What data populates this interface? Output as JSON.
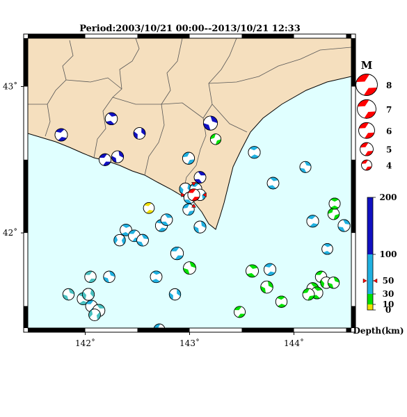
{
  "title": "Period:2003/10/21 00:00--2013/10/21 12:33",
  "axes": {
    "x_ticks": [
      {
        "value": 142,
        "label": "142˚"
      },
      {
        "value": 143,
        "label": "143˚"
      },
      {
        "value": 144,
        "label": "144˚"
      }
    ],
    "y_ticks": [
      {
        "value": 43,
        "label": "43˚"
      },
      {
        "value": 42,
        "label": "42˚"
      }
    ],
    "lon_range": [
      141.45,
      144.55
    ],
    "lat_range": [
      41.35,
      43.33
    ]
  },
  "colors": {
    "land": "#f5dfbe",
    "sea": "#e0ffff",
    "frame": "#000000",
    "legend_red": "#ff0000"
  },
  "legend": {
    "magnitude_header": "M",
    "magnitudes": [
      {
        "label": "8",
        "m": 8
      },
      {
        "label": "7",
        "m": 7
      },
      {
        "label": "6",
        "m": 6
      },
      {
        "label": "5",
        "m": 5
      },
      {
        "label": "4",
        "m": 4
      }
    ],
    "depth_title": "Depth(km)",
    "depth_ticks": [
      {
        "value": 200,
        "label": "200"
      },
      {
        "value": 100,
        "label": "100"
      },
      {
        "value": 50,
        "label": "50"
      },
      {
        "value": 30,
        "label": "30"
      },
      {
        "value": 10,
        "label": "10"
      },
      {
        "value": 0,
        "label": "0"
      }
    ],
    "depth_bands": [
      {
        "from": 0,
        "to": 10,
        "color": "#f0e000"
      },
      {
        "from": 10,
        "to": 30,
        "color": "#00e000"
      },
      {
        "from": 30,
        "to": 100,
        "color": "#20b0e0"
      },
      {
        "from": 100,
        "to": 200,
        "color": "#1010c0"
      }
    ],
    "marker_depth": 50
  },
  "chart_data": {
    "type": "focal-mechanism map",
    "x_unit": "longitude (deg E)",
    "y_unit": "latitude (deg N)",
    "events": [
      {
        "lon": 141.77,
        "lat": 42.67,
        "mag": 5.0,
        "color": "#1010c0",
        "rot": 30
      },
      {
        "lon": 142.25,
        "lat": 42.78,
        "mag": 4.9,
        "color": "#1010c0",
        "rot": 60
      },
      {
        "lon": 142.52,
        "lat": 42.68,
        "mag": 4.7,
        "color": "#1010c0",
        "rot": 110
      },
      {
        "lon": 142.19,
        "lat": 42.5,
        "mag": 4.8,
        "color": "#1010c0",
        "rot": 20
      },
      {
        "lon": 142.31,
        "lat": 42.52,
        "mag": 4.8,
        "color": "#1010c0",
        "rot": 100
      },
      {
        "lon": 142.99,
        "lat": 42.51,
        "mag": 4.8,
        "color": "#20b0e0",
        "rot": 10
      },
      {
        "lon": 143.1,
        "lat": 42.38,
        "mag": 4.7,
        "color": "#1010c0",
        "rot": 70
      },
      {
        "lon": 143.2,
        "lat": 42.75,
        "mag": 5.6,
        "color": "#1010c0",
        "rot": 90
      },
      {
        "lon": 143.25,
        "lat": 42.64,
        "mag": 4.3,
        "color": "#00e000",
        "rot": 0
      },
      {
        "lon": 143.62,
        "lat": 42.55,
        "mag": 4.8,
        "color": "#20b0e0",
        "rot": 40
      },
      {
        "lon": 144.11,
        "lat": 42.45,
        "mag": 4.5,
        "color": "#20b0e0",
        "rot": 80
      },
      {
        "lon": 143.8,
        "lat": 42.34,
        "mag": 4.7,
        "color": "#20b0e0",
        "rot": 60
      },
      {
        "lon": 142.96,
        "lat": 42.3,
        "mag": 4.8,
        "color": "#20b0e0",
        "rot": 120
      },
      {
        "lon": 143.06,
        "lat": 42.3,
        "mag": 4.8,
        "color": "#20b0e0",
        "rot": 30
      },
      {
        "lon": 143.1,
        "lat": 42.26,
        "mag": 4.6,
        "color": "#20b0e0",
        "rot": 150
      },
      {
        "lon": 143.0,
        "lat": 42.24,
        "mag": 4.6,
        "color": "#20b0e0",
        "rot": 70
      },
      {
        "lon": 142.99,
        "lat": 42.16,
        "mag": 4.6,
        "color": "#20b0e0",
        "rot": 10
      },
      {
        "lon": 142.61,
        "lat": 42.17,
        "mag": 4.4,
        "color": "#f0e000",
        "rot": 30
      },
      {
        "lon": 143.1,
        "lat": 42.04,
        "mag": 4.8,
        "color": "#20b0e0",
        "rot": 100
      },
      {
        "lon": 142.39,
        "lat": 42.02,
        "mag": 4.7,
        "color": "#20b0e0",
        "rot": 50
      },
      {
        "lon": 142.47,
        "lat": 41.98,
        "mag": 4.7,
        "color": "#20b0e0",
        "rot": 20
      },
      {
        "lon": 142.55,
        "lat": 41.95,
        "mag": 4.7,
        "color": "#20b0e0",
        "rot": 80
      },
      {
        "lon": 142.33,
        "lat": 41.95,
        "mag": 4.6,
        "color": "#20b0e0",
        "rot": 140
      },
      {
        "lon": 142.73,
        "lat": 42.05,
        "mag": 4.8,
        "color": "#20b0e0",
        "rot": 30
      },
      {
        "lon": 142.78,
        "lat": 42.09,
        "mag": 4.7,
        "color": "#20b0e0",
        "rot": 70
      },
      {
        "lon": 142.88,
        "lat": 41.86,
        "mag": 5.1,
        "color": "#20b0e0",
        "rot": 20
      },
      {
        "lon": 143.0,
        "lat": 41.76,
        "mag": 5.0,
        "color": "#00e000",
        "rot": 90
      },
      {
        "lon": 142.68,
        "lat": 41.7,
        "mag": 4.7,
        "color": "#20b0e0",
        "rot": 50
      },
      {
        "lon": 142.86,
        "lat": 41.58,
        "mag": 4.6,
        "color": "#20b0e0",
        "rot": 110
      },
      {
        "lon": 142.71,
        "lat": 41.34,
        "mag": 4.5,
        "color": "#20b0e0",
        "rot": 10
      },
      {
        "lon": 142.05,
        "lat": 41.7,
        "mag": 4.6,
        "color": "#48c0c0",
        "rot": 20
      },
      {
        "lon": 142.23,
        "lat": 41.7,
        "mag": 4.6,
        "color": "#20b0e0",
        "rot": 90
      },
      {
        "lon": 141.84,
        "lat": 41.58,
        "mag": 4.6,
        "color": "#48c0c0",
        "rot": 90
      },
      {
        "lon": 141.98,
        "lat": 41.55,
        "mag": 4.8,
        "color": "#48c0c0",
        "rot": 40
      },
      {
        "lon": 142.03,
        "lat": 41.58,
        "mag": 4.8,
        "color": "#48c0c0",
        "rot": 120
      },
      {
        "lon": 142.06,
        "lat": 41.5,
        "mag": 4.7,
        "color": "#20b0e0",
        "rot": 20
      },
      {
        "lon": 142.13,
        "lat": 41.47,
        "mag": 4.9,
        "color": "#48c0c0",
        "rot": 70
      },
      {
        "lon": 142.09,
        "lat": 41.44,
        "mag": 4.7,
        "color": "#48c0c0",
        "rot": 150
      },
      {
        "lon": 143.48,
        "lat": 41.46,
        "mag": 4.5,
        "color": "#00e000",
        "rot": 20
      },
      {
        "lon": 143.6,
        "lat": 41.74,
        "mag": 5.0,
        "color": "#00e000",
        "rot": 60
      },
      {
        "lon": 143.77,
        "lat": 41.75,
        "mag": 4.8,
        "color": "#20b0e0",
        "rot": 30
      },
      {
        "lon": 143.74,
        "lat": 41.63,
        "mag": 4.9,
        "color": "#00e000",
        "rot": 100
      },
      {
        "lon": 143.88,
        "lat": 41.53,
        "mag": 4.6,
        "color": "#00e000",
        "rot": 40
      },
      {
        "lon": 144.18,
        "lat": 41.62,
        "mag": 4.7,
        "color": "#00e000",
        "rot": 70
      },
      {
        "lon": 144.26,
        "lat": 41.7,
        "mag": 4.6,
        "color": "#00e000",
        "rot": 20
      },
      {
        "lon": 144.31,
        "lat": 41.66,
        "mag": 4.6,
        "color": "#00e000",
        "rot": 120
      },
      {
        "lon": 144.22,
        "lat": 41.59,
        "mag": 4.8,
        "color": "#00e000",
        "rot": 60
      },
      {
        "lon": 144.14,
        "lat": 41.58,
        "mag": 4.7,
        "color": "#00e000",
        "rot": 10
      },
      {
        "lon": 144.38,
        "lat": 41.66,
        "mag": 4.6,
        "color": "#00e000",
        "rot": 90
      },
      {
        "lon": 144.32,
        "lat": 41.89,
        "mag": 4.4,
        "color": "#20b0e0",
        "rot": 50
      },
      {
        "lon": 144.18,
        "lat": 42.08,
        "mag": 4.8,
        "color": "#20b0e0",
        "rot": 30
      },
      {
        "lon": 144.38,
        "lat": 42.13,
        "mag": 4.6,
        "color": "#00e000",
        "rot": 0
      },
      {
        "lon": 144.39,
        "lat": 42.2,
        "mag": 4.5,
        "color": "#00e000",
        "rot": 45
      },
      {
        "lon": 144.48,
        "lat": 42.05,
        "mag": 4.8,
        "color": "#20b0e0",
        "rot": 80
      }
    ],
    "mainshock": {
      "lon": 143.04,
      "lat": 42.26,
      "mag": 5.6,
      "color": "#ff0000",
      "rot": 20
    }
  }
}
